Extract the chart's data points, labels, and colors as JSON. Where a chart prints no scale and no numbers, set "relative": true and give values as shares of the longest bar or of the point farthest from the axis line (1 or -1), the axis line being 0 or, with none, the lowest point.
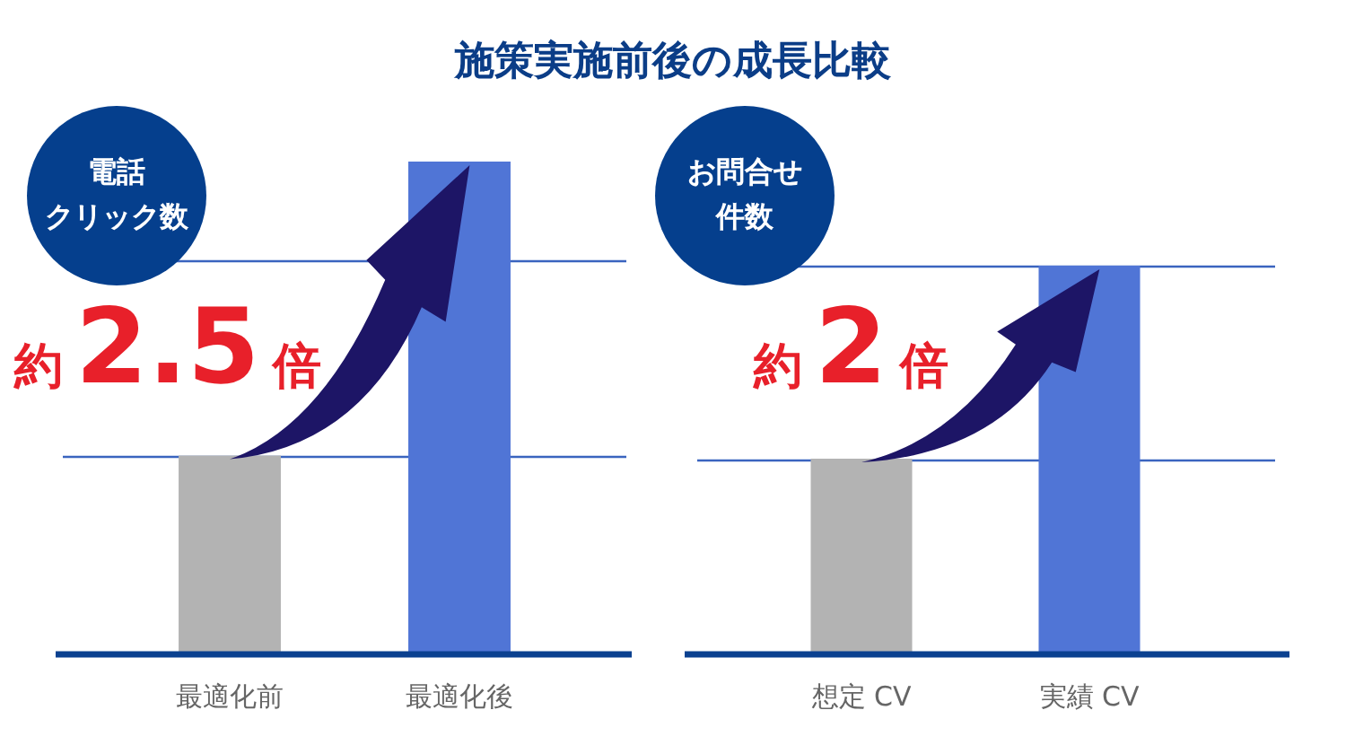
{
  "chart_data": [
    {
      "type": "bar",
      "title": "施策実施前後の成長比較",
      "subtitle": "電話クリック数",
      "categories": [
        "最適化前",
        "最適化後"
      ],
      "values": [
        0.4,
        1
      ],
      "colors": [
        "#b3b3b3",
        "#5075d6"
      ],
      "relative": true,
      "ref_lines": [
        {
          "axis": "y",
          "value": 0.4,
          "color": "#3a64bf"
        },
        {
          "axis": "y",
          "value": 0.8,
          "color": "#3a64bf"
        }
      ],
      "tick_labels": "x",
      "annotations": [
        "約2.5倍"
      ]
    },
    {
      "type": "bar",
      "subtitle": "お問合せ件数",
      "categories": [
        "想定 CV",
        "実績 CV"
      ],
      "values": [
        0.5,
        1
      ],
      "colors": [
        "#b3b3b3",
        "#5075d6"
      ],
      "relative": true,
      "ref_lines": [
        {
          "axis": "y",
          "value": 0.5,
          "color": "#3a64bf"
        },
        {
          "axis": "y",
          "value": 1,
          "color": "#3a64bf"
        }
      ],
      "tick_labels": "x",
      "annotations": [
        "約2倍"
      ]
    }
  ]
}
